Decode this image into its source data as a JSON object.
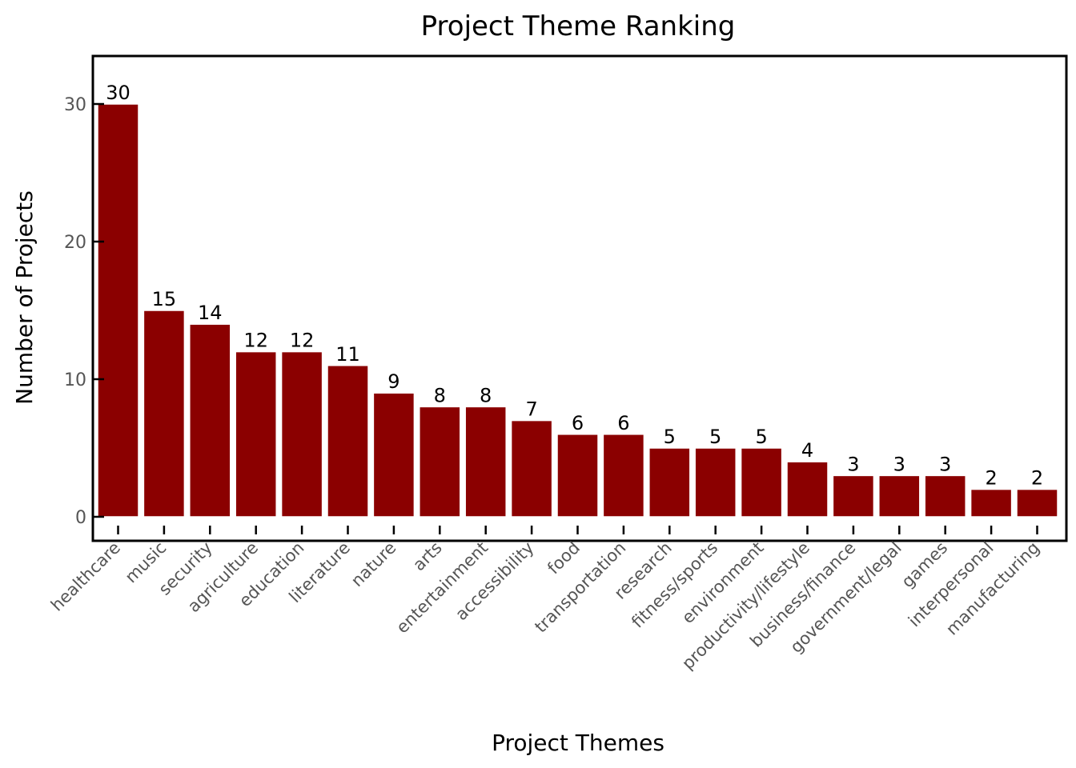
{
  "chart_data": {
    "type": "bar",
    "title": "Project Theme Ranking",
    "xlabel": "Project Themes",
    "ylabel": "Number of Projects",
    "categories": [
      "healthcare",
      "music",
      "security",
      "agriculture",
      "education",
      "literature",
      "nature",
      "arts",
      "entertainment",
      "accessibility",
      "food",
      "transportation",
      "research",
      "fitness/sports",
      "environment",
      "productivity/lifestyle",
      "business/finance",
      "government/legal",
      "games",
      "interpersonal",
      "manufacturing"
    ],
    "values": [
      30,
      15,
      14,
      12,
      12,
      11,
      9,
      8,
      8,
      7,
      6,
      6,
      5,
      5,
      5,
      4,
      3,
      3,
      3,
      2,
      2
    ],
    "yticks": [
      0,
      10,
      20,
      30
    ],
    "ylim": [
      0,
      33.5
    ],
    "bar_color": "#8b0000",
    "grid": false,
    "data_labels": true
  }
}
